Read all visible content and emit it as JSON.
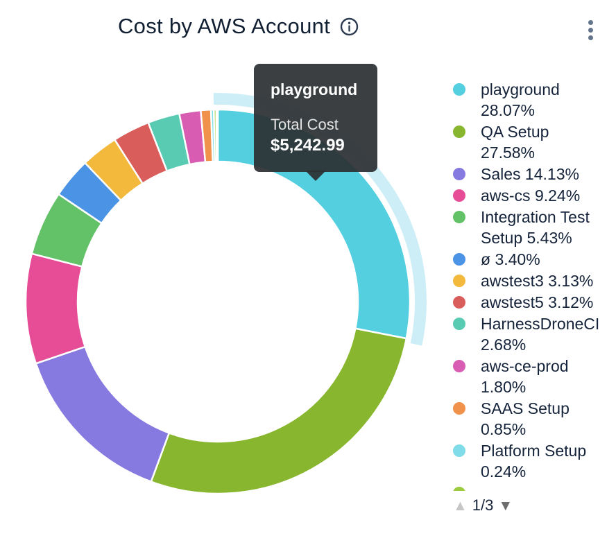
{
  "header": {
    "title": "Cost by AWS Account"
  },
  "tooltip": {
    "name": "playground",
    "label": "Total Cost",
    "value": "$5,242.99"
  },
  "legend_pagination": {
    "page": "1/3",
    "up_icon": "▲",
    "down_icon": "▼"
  },
  "chart_data": {
    "type": "pie",
    "subtype": "donut",
    "title": "Cost by AWS Account",
    "legend_position": "right",
    "highlighted": {
      "name": "playground",
      "total_cost": "$5,242.99"
    },
    "series": [
      {
        "name": "playground",
        "pct": 28.07,
        "color": "#53CFE0"
      },
      {
        "name": "QA Setup",
        "pct": 27.58,
        "color": "#88B72F"
      },
      {
        "name": "Sales",
        "pct": 14.13,
        "color": "#8679E0"
      },
      {
        "name": "aws-cs",
        "pct": 9.24,
        "color": "#E74C96"
      },
      {
        "name": "Integration Test Setup",
        "pct": 5.43,
        "color": "#63C168"
      },
      {
        "name": "ø",
        "pct": 3.4,
        "color": "#4B93E4"
      },
      {
        "name": "awstest3",
        "pct": 3.13,
        "color": "#F2B93C"
      },
      {
        "name": "awstest5",
        "pct": 3.12,
        "color": "#D95D5A"
      },
      {
        "name": "HarnessDroneCI",
        "pct": 2.68,
        "color": "#58CBB2"
      },
      {
        "name": "aws-ce-prod",
        "pct": 1.8,
        "color": "#D85CB2"
      },
      {
        "name": "SAAS Setup",
        "pct": 0.85,
        "color": "#F0914C"
      },
      {
        "name": "Platform Setup",
        "pct": 0.24,
        "color": "#80DCE8"
      }
    ],
    "overflow_slices": [
      {
        "pct": 0.2,
        "color": "#9CCB3F"
      },
      {
        "pct": 0.13,
        "color": "#58CBB2"
      }
    ],
    "next_page_first_dot_color": "#9CCB3F",
    "highlight_ring_color": "rgba(90, 200, 230, 0.30)"
  }
}
